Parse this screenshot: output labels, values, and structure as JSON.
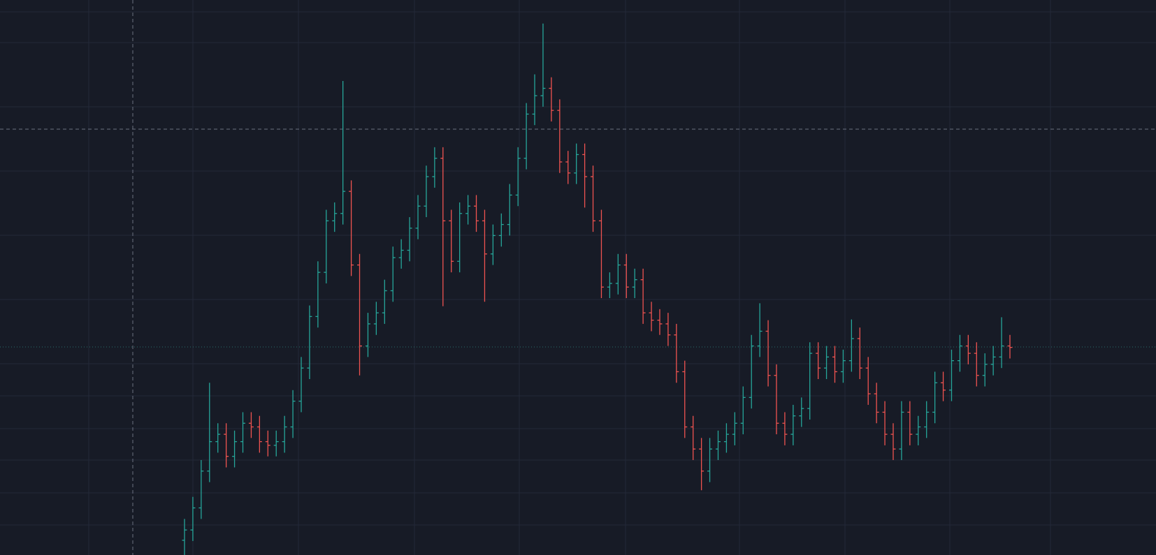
{
  "chart_data": {
    "type": "ohlc",
    "up_color": "#26a69a",
    "down_color": "#ef5350",
    "ylim": [
      0,
      754
    ],
    "open": [
      20,
      34,
      64,
      114,
      154,
      164,
      134,
      154,
      179,
      174,
      154,
      149,
      154,
      174,
      209,
      254,
      324,
      384,
      454,
      464,
      494,
      394,
      284,
      314,
      329,
      359,
      404,
      414,
      444,
      474,
      514,
      539,
      454,
      399,
      464,
      474,
      454,
      409,
      434,
      449,
      489,
      539,
      599,
      624,
      634,
      604,
      534,
      519,
      544,
      514,
      454,
      364,
      369,
      394,
      364,
      374,
      329,
      319,
      314,
      299,
      249,
      174,
      144,
      114,
      144,
      154,
      164,
      179,
      214,
      284,
      304,
      244,
      179,
      164,
      189,
      199,
      274,
      254,
      269,
      249,
      264,
      294,
      254,
      219,
      194,
      164,
      144,
      194,
      164,
      174,
      194,
      234,
      224,
      264,
      284,
      274,
      244,
      259,
      269,
      284
    ],
    "high": [
      49,
      79,
      129,
      234,
      179,
      179,
      169,
      194,
      194,
      189,
      169,
      169,
      189,
      224,
      269,
      339,
      399,
      469,
      479,
      644,
      509,
      409,
      329,
      344,
      374,
      419,
      429,
      459,
      489,
      529,
      554,
      554,
      469,
      479,
      489,
      489,
      469,
      449,
      464,
      504,
      554,
      614,
      653,
      722,
      649,
      619,
      549,
      559,
      559,
      529,
      469,
      384,
      409,
      409,
      389,
      389,
      344,
      334,
      329,
      314,
      264,
      189,
      159,
      159,
      169,
      179,
      194,
      229,
      299,
      342,
      319,
      259,
      194,
      204,
      214,
      289,
      289,
      284,
      284,
      279,
      320,
      309,
      269,
      234,
      209,
      179,
      209,
      209,
      189,
      209,
      249,
      249,
      279,
      299,
      299,
      289,
      274,
      284,
      323,
      299
    ],
    "low": [
      0,
      19,
      49,
      99,
      139,
      119,
      119,
      139,
      159,
      139,
      134,
      134,
      139,
      159,
      194,
      239,
      309,
      369,
      439,
      449,
      379,
      244,
      269,
      299,
      314,
      344,
      389,
      399,
      429,
      459,
      499,
      338,
      384,
      384,
      449,
      439,
      344,
      394,
      419,
      434,
      474,
      524,
      584,
      609,
      589,
      519,
      504,
      504,
      472,
      439,
      349,
      349,
      354,
      349,
      349,
      314,
      304,
      299,
      284,
      234,
      159,
      129,
      88,
      99,
      129,
      139,
      149,
      164,
      199,
      269,
      229,
      164,
      149,
      149,
      174,
      184,
      239,
      239,
      234,
      234,
      249,
      239,
      204,
      179,
      149,
      129,
      129,
      149,
      149,
      159,
      179,
      209,
      209,
      249,
      259,
      229,
      229,
      244,
      254,
      267
    ],
    "close": [
      34,
      64,
      114,
      154,
      164,
      134,
      154,
      179,
      174,
      154,
      149,
      154,
      174,
      209,
      254,
      324,
      384,
      454,
      464,
      494,
      394,
      284,
      314,
      329,
      359,
      404,
      414,
      444,
      474,
      514,
      539,
      454,
      399,
      464,
      474,
      454,
      409,
      434,
      449,
      489,
      539,
      599,
      624,
      634,
      604,
      534,
      519,
      544,
      514,
      454,
      364,
      369,
      394,
      364,
      374,
      329,
      319,
      314,
      299,
      249,
      174,
      144,
      114,
      144,
      154,
      164,
      179,
      214,
      284,
      304,
      244,
      179,
      164,
      189,
      199,
      274,
      254,
      269,
      249,
      264,
      294,
      254,
      219,
      194,
      164,
      144,
      194,
      164,
      174,
      194,
      234,
      224,
      264,
      284,
      274,
      244,
      259,
      269,
      284,
      282
    ]
  }
}
